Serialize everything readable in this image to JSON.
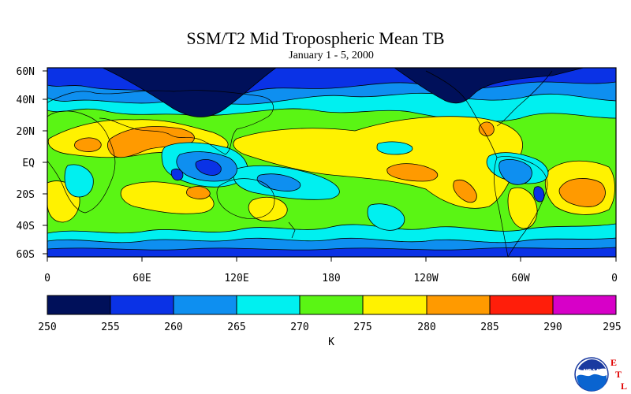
{
  "title": "SSM/T2 Mid Tropospheric Mean TB",
  "subtitle": "January 1 - 5, 2000",
  "map": {
    "lat_ticks": [
      "60N",
      "40N",
      "20N",
      "EQ",
      "20S",
      "40S",
      "60S"
    ],
    "lon_ticks": [
      "0",
      "60E",
      "120E",
      "180",
      "120W",
      "60W",
      "0"
    ],
    "lat_range": [
      -60,
      60
    ],
    "lon_range": [
      0,
      360
    ],
    "colorbar": {
      "ticks": [
        "250",
        "255",
        "260",
        "265",
        "270",
        "275",
        "280",
        "285",
        "290",
        "295"
      ],
      "unit": "K",
      "colors": [
        "#00105a",
        "#0a32e6",
        "#0e8ff0",
        "#00f0f0",
        "#5af514",
        "#fff200",
        "#ff9a00",
        "#ff1e0a",
        "#d700c8"
      ]
    }
  },
  "logo": {
    "noaa_text": "NOAA",
    "etl_letters": [
      "E",
      "T",
      "L"
    ],
    "etl_color": "#e00000"
  }
}
